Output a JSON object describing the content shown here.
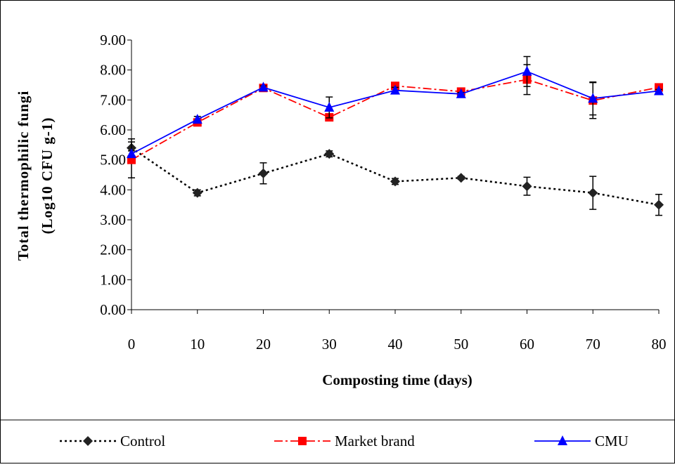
{
  "chart_data": {
    "type": "line",
    "x_label": "Composting time (days)",
    "y_label": "Total thermophilic fungi",
    "y_label_unit": "(Log10 CFU g-1)",
    "x": [
      0,
      10,
      20,
      30,
      40,
      50,
      60,
      70,
      80
    ],
    "xlim": [
      0,
      80
    ],
    "xticks": [
      0,
      10,
      20,
      30,
      40,
      50,
      60,
      70,
      80
    ],
    "ylim": [
      0,
      9
    ],
    "yticks": [
      {
        "value": 0,
        "label": "0.00"
      },
      {
        "value": 1,
        "label": "1.00"
      },
      {
        "value": 2,
        "label": "2.00"
      },
      {
        "value": 3,
        "label": "3.00"
      },
      {
        "value": 4,
        "label": "4.00"
      },
      {
        "value": 5,
        "label": "5.00"
      },
      {
        "value": 6,
        "label": "6.00"
      },
      {
        "value": 7,
        "label": "7.00"
      },
      {
        "value": 8,
        "label": "8.00"
      },
      {
        "value": 9,
        "label": "9.00"
      }
    ],
    "legend": "bottom",
    "series": [
      {
        "name": "Control",
        "color": "#000000",
        "line_style": "dotted",
        "marker": "diamond",
        "values": [
          5.4,
          3.9,
          4.55,
          5.2,
          4.28,
          4.4,
          4.12,
          3.9,
          3.5
        ],
        "errors": [
          0.3,
          0.1,
          0.35,
          0.1,
          0.1,
          0.05,
          0.3,
          0.55,
          0.35
        ]
      },
      {
        "name": "Market brand",
        "color": "#ff0000",
        "line_style": "dashdot",
        "marker": "square",
        "values": [
          5.0,
          6.25,
          7.4,
          6.42,
          7.47,
          7.28,
          7.68,
          6.98,
          7.42
        ],
        "errors": [
          0.6,
          0.05,
          0.05,
          0.1,
          0.05,
          0.05,
          0.5,
          0.6,
          0.05
        ]
      },
      {
        "name": "CMU",
        "color": "#0000ff",
        "line_style": "solid",
        "marker": "triangle",
        "values": [
          5.2,
          6.35,
          7.42,
          6.75,
          7.32,
          7.2,
          7.95,
          7.05,
          7.3
        ],
        "errors": [
          0.1,
          0.1,
          0.05,
          0.35,
          0.1,
          0.05,
          0.5,
          0.55,
          0.05
        ]
      }
    ]
  }
}
